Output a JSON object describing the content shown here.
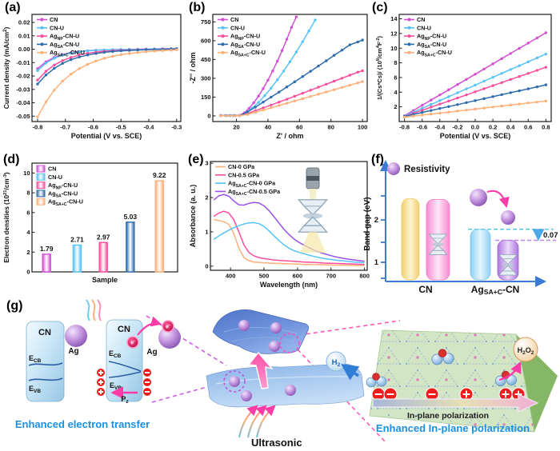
{
  "panel_labels": [
    "(a)",
    "(b)",
    "(c)",
    "(d)",
    "(e)",
    "(f)",
    "(g)"
  ],
  "palette": {
    "cn": "#d44fd4",
    "cn_u": "#56c2f8",
    "ag_np": "#fb4d9d",
    "ag_sa": "#2d6dad",
    "ag_sa_c": "#ffb078",
    "purple_05": "#9950e8",
    "caption_blue": "#1b8fe0",
    "axis_blue": "#3a7bd5",
    "charge_red": "#ee1c1c",
    "pink_arrow": "#ff3ba8"
  },
  "chart_data": [
    {
      "id": "a",
      "type": "line",
      "xlabel": "Potential (V vs. SCE)",
      "ylabel": "Current density (mA/cm^{2})",
      "xlim": [
        -0.82,
        -0.285
      ],
      "ylim": [
        -0.054,
        0.026
      ],
      "xticks": [
        -0.8,
        -0.7,
        -0.6,
        -0.5,
        -0.4,
        -0.3
      ],
      "xtick_labels": [
        "-0.8",
        "-0.7",
        "-0.6",
        "-0.5",
        "-0.4",
        "-0.3"
      ],
      "yticks": [
        0.02,
        0.01,
        0,
        -0.01,
        -0.02,
        -0.03,
        -0.04,
        -0.05
      ],
      "ytick_labels": [
        "0.02",
        "0.01",
        "0.00",
        "-0.01",
        "-0.02",
        "-0.03",
        "-0.04",
        "-0.05"
      ],
      "legend_pos": "top-left",
      "grid": false,
      "x": [
        -0.8,
        -0.77,
        -0.74,
        -0.71,
        -0.68,
        -0.65,
        -0.62,
        -0.59,
        -0.56,
        -0.53,
        -0.5,
        -0.47,
        -0.44,
        -0.41,
        -0.38,
        -0.35,
        -0.32,
        -0.3
      ],
      "series": [
        {
          "name": "CN",
          "color": "#d44fd4",
          "values": [
            -0.0145,
            -0.0094,
            -0.0061,
            -0.004,
            -0.0026,
            -0.0017,
            -0.0011,
            -0.0007,
            -0.0005,
            -0.0003,
            -0.0002,
            -0.0001,
            0.0,
            0.0001,
            0.0002,
            0.0003,
            0.0004,
            0.0005
          ]
        },
        {
          "name": "CN-U",
          "color": "#56c2f8",
          "values": [
            -0.016,
            -0.0104,
            -0.0068,
            -0.0044,
            -0.0029,
            -0.0019,
            -0.0012,
            -0.0008,
            -0.0005,
            -0.0003,
            -0.0002,
            -0.0001,
            0.0,
            0.0001,
            0.0002,
            0.0003,
            0.0004,
            0.0005
          ]
        },
        {
          "name": "Ag_{NP}-CN-U",
          "color": "#fb4d9d",
          "values": [
            -0.023,
            -0.0165,
            -0.0118,
            -0.0085,
            -0.0061,
            -0.0043,
            -0.0031,
            -0.0022,
            -0.0016,
            -0.0011,
            -0.0008,
            -0.0006,
            -0.0004,
            -0.0002,
            -0.0001,
            0.0001,
            0.0002,
            0.0003
          ]
        },
        {
          "name": "Ag_{SA}-CN-U",
          "color": "#2d6dad",
          "values": [
            -0.026,
            -0.0193,
            -0.0143,
            -0.0106,
            -0.0078,
            -0.0058,
            -0.0043,
            -0.0032,
            -0.0023,
            -0.0017,
            -0.0012,
            -0.0009,
            -0.0006,
            -0.0004,
            -0.0002,
            -0.0001,
            0.0001,
            0.0002
          ]
        },
        {
          "name": "Ag_{SA+C}-CN-U",
          "color": "#ffb078",
          "values": [
            -0.0505,
            -0.0393,
            -0.0306,
            -0.0238,
            -0.0186,
            -0.0145,
            -0.0113,
            -0.0088,
            -0.0068,
            -0.0053,
            -0.0041,
            -0.0032,
            -0.0025,
            -0.0019,
            -0.0014,
            -0.001,
            -0.0007,
            -0.0004
          ]
        }
      ]
    },
    {
      "id": "b",
      "type": "line",
      "xlabel": "Z' / ohm",
      "ylabel": "-Z'' / ohm",
      "xlim": [
        5,
        103
      ],
      "ylim": [
        -45,
        810
      ],
      "xticks": [
        20,
        40,
        60,
        80,
        100
      ],
      "xtick_labels": [
        "20",
        "40",
        "60",
        "80",
        "100"
      ],
      "yticks": [
        0,
        150,
        300,
        450,
        600,
        750
      ],
      "ytick_labels": [
        "0",
        "150",
        "300",
        "450",
        "600",
        "750"
      ],
      "legend_pos": "top-left",
      "grid": false,
      "series": [
        {
          "name": "CN",
          "color": "#d44fd4",
          "points": [
            [
              10,
              3
            ],
            [
              13,
              3
            ],
            [
              16,
              3
            ],
            [
              19,
              3
            ],
            [
              22,
              4
            ],
            [
              25,
              25
            ],
            [
              28,
              60
            ],
            [
              31,
              105
            ],
            [
              34,
              158
            ],
            [
              37,
              218
            ],
            [
              40,
              285
            ],
            [
              43,
              358
            ],
            [
              46,
              437
            ],
            [
              49,
              522
            ],
            [
              52,
              612
            ],
            [
              55,
              707
            ],
            [
              58,
              790
            ]
          ]
        },
        {
          "name": "CN-U",
          "color": "#56c2f8",
          "points": [
            [
              10,
              2
            ],
            [
              13,
              2
            ],
            [
              16,
              2
            ],
            [
              19,
              2
            ],
            [
              22,
              3
            ],
            [
              26,
              25
            ],
            [
              30,
              62
            ],
            [
              34,
              108
            ],
            [
              38,
              162
            ],
            [
              42,
              222
            ],
            [
              46,
              288
            ],
            [
              50,
              358
            ],
            [
              54,
              432
            ],
            [
              58,
              510
            ],
            [
              62,
              592
            ],
            [
              66,
              677
            ],
            [
              70,
              765
            ]
          ]
        },
        {
          "name": "Ag_{NP}-CN-U",
          "color": "#fb4d9d",
          "points": [
            [
              10,
              2
            ],
            [
              14,
              2
            ],
            [
              18,
              2
            ],
            [
              22,
              3
            ],
            [
              27,
              20
            ],
            [
              32,
              42
            ],
            [
              37,
              64
            ],
            [
              42,
              87
            ],
            [
              47,
              110
            ],
            [
              52,
              133
            ],
            [
              57,
              157
            ],
            [
              62,
              181
            ],
            [
              67,
              205
            ],
            [
              72,
              229
            ],
            [
              77,
              253
            ],
            [
              82,
              277
            ],
            [
              87,
              301
            ],
            [
              92,
              325
            ],
            [
              97,
              349
            ],
            [
              100,
              360
            ]
          ]
        },
        {
          "name": "Ag_{SA}-CN-U",
          "color": "#2d6dad",
          "points": [
            [
              10,
              2
            ],
            [
              14,
              2
            ],
            [
              18,
              2
            ],
            [
              22,
              3
            ],
            [
              27,
              32
            ],
            [
              32,
              70
            ],
            [
              37,
              110
            ],
            [
              42,
              150
            ],
            [
              47,
              190
            ],
            [
              52,
              231
            ],
            [
              57,
              272
            ],
            [
              62,
              314
            ],
            [
              67,
              356
            ],
            [
              72,
              398
            ],
            [
              77,
              440
            ],
            [
              82,
              483
            ],
            [
              87,
              525
            ],
            [
              92,
              567
            ],
            [
              97,
              590
            ],
            [
              100,
              605
            ]
          ]
        },
        {
          "name": "Ag_{SA+C}-CN-U",
          "color": "#ffb078",
          "points": [
            [
              10,
              1
            ],
            [
              14,
              1
            ],
            [
              18,
              1
            ],
            [
              22,
              2
            ],
            [
              27,
              11
            ],
            [
              32,
              29
            ],
            [
              37,
              47
            ],
            [
              42,
              65
            ],
            [
              47,
              83
            ],
            [
              52,
              101
            ],
            [
              57,
              119
            ],
            [
              62,
              137
            ],
            [
              67,
              155
            ],
            [
              72,
              173
            ],
            [
              77,
              191
            ],
            [
              82,
              209
            ],
            [
              87,
              227
            ],
            [
              92,
              245
            ],
            [
              97,
              263
            ],
            [
              100,
              274
            ]
          ]
        }
      ]
    },
    {
      "id": "c",
      "type": "line",
      "xlabel": "Potential (V vs. SCE)",
      "ylabel": "1/(Cs*Cs)/ (10^{9}/cm^{4}F^{-2})",
      "xlim": [
        -0.86,
        0.86
      ],
      "ylim": [
        0,
        14.6
      ],
      "xticks": [
        -0.8,
        -0.6,
        -0.4,
        -0.2,
        0,
        0.2,
        0.4,
        0.6,
        0.8
      ],
      "xtick_labels": [
        "-0.8",
        "-0.6",
        "-0.4",
        "-0.2",
        "0.0",
        "0.2",
        "0.4",
        "0.6",
        "0.8"
      ],
      "yticks": [
        2,
        4,
        6,
        8,
        10,
        12,
        14
      ],
      "ytick_labels": [
        "2",
        "4",
        "6",
        "8",
        "10",
        "12",
        "14"
      ],
      "legend_pos": "top-left",
      "grid": false,
      "x": [
        -0.8,
        -0.7,
        -0.6,
        -0.5,
        -0.4,
        -0.3,
        -0.2,
        -0.1,
        0,
        0.1,
        0.2,
        0.3,
        0.4,
        0.5,
        0.6,
        0.7,
        0.8
      ],
      "series": [
        {
          "name": "CN",
          "color": "#d44fd4",
          "values": [
            0.8,
            1.51,
            2.21,
            2.92,
            3.63,
            4.33,
            5.04,
            5.74,
            6.45,
            7.16,
            7.86,
            8.57,
            9.27,
            9.98,
            10.69,
            11.39,
            12.1
          ]
        },
        {
          "name": "CN-U",
          "color": "#56c2f8",
          "values": [
            0.75,
            1.28,
            1.81,
            2.33,
            2.86,
            3.39,
            3.92,
            4.45,
            4.97,
            5.5,
            6.03,
            6.56,
            7.09,
            7.61,
            8.14,
            8.67,
            9.2
          ]
        },
        {
          "name": "Ag_{NP}-CN-U",
          "color": "#fb4d9d",
          "values": [
            0.7,
            1.12,
            1.54,
            1.96,
            2.38,
            2.79,
            3.21,
            3.63,
            4.05,
            4.47,
            4.89,
            5.31,
            5.73,
            6.14,
            6.56,
            6.98,
            7.4
          ]
        },
        {
          "name": "Ag_{SA}-CN-U",
          "color": "#2d6dad",
          "values": [
            0.7,
            0.97,
            1.24,
            1.51,
            1.78,
            2.04,
            2.31,
            2.58,
            2.85,
            3.12,
            3.39,
            3.66,
            3.93,
            4.19,
            4.46,
            4.73,
            5.0
          ]
        },
        {
          "name": "Ag_{SA+C}-CN-U",
          "color": "#ffb078",
          "values": [
            0.6,
            0.74,
            0.88,
            1.01,
            1.15,
            1.29,
            1.43,
            1.56,
            1.7,
            1.84,
            1.98,
            2.11,
            2.25,
            2.39,
            2.53,
            2.66,
            2.8
          ]
        }
      ]
    },
    {
      "id": "d",
      "type": "bar",
      "xlabel": "Sample",
      "ylabel": "Electron densities (10^{21}/cm^{-3})",
      "ylim": [
        0,
        11
      ],
      "yticks": [
        0,
        2,
        4,
        6,
        8,
        10
      ],
      "ytick_labels": [
        "0",
        "2",
        "4",
        "6",
        "8",
        "10"
      ],
      "categories": [
        "CN",
        "CN-U",
        "Ag_{NP}-CN-U",
        "Ag_{SA}-CN-U",
        "Ag_{SA+C}-CN-U"
      ],
      "values": [
        1.79,
        2.71,
        2.97,
        5.03,
        9.22
      ],
      "value_labels": [
        "1.79",
        "2.71",
        "2.97",
        "5.03",
        "9.22"
      ],
      "colors": [
        "#d44fd4",
        "#56c2f8",
        "#fb4d9d",
        "#2d6dad",
        "#ffb078"
      ]
    },
    {
      "id": "e",
      "type": "line",
      "xlabel": "Wavelength (nm)",
      "ylabel": "Absorbance (a. u.)",
      "xlim": [
        340,
        808
      ],
      "ylim": [
        -0.12,
        3.05
      ],
      "xticks": [
        400,
        500,
        600,
        700,
        800
      ],
      "xtick_labels": [
        "400",
        "500",
        "600",
        "700",
        "800"
      ],
      "yticks": [
        0,
        1,
        2,
        3
      ],
      "ytick_labels": [
        "0",
        "1",
        "2",
        "3"
      ],
      "legend_pos": "top-left",
      "grid": false,
      "no_markers": true,
      "x": [
        350,
        365,
        380,
        395,
        410,
        425,
        440,
        455,
        470,
        485,
        500,
        515,
        530,
        545,
        560,
        575,
        590,
        605,
        620,
        650,
        680,
        710,
        740,
        770,
        800
      ],
      "series": [
        {
          "name": "CN-0 GPa",
          "color": "#ffb078",
          "values": [
            1.36,
            1.33,
            1.3,
            1.22,
            0.95,
            0.52,
            0.25,
            0.16,
            0.12,
            0.11,
            0.1,
            0.09,
            0.08,
            0.08,
            0.07,
            0.07,
            0.06,
            0.06,
            0.05,
            0.05,
            0.04,
            0.03,
            0.03,
            0.02,
            0.02
          ]
        },
        {
          "name": "CN-0.5 GPa",
          "color": "#fb4d9d",
          "values": [
            1.45,
            1.55,
            1.6,
            1.55,
            1.35,
            1.0,
            0.62,
            0.4,
            0.3,
            0.25,
            0.22,
            0.2,
            0.18,
            0.17,
            0.16,
            0.15,
            0.14,
            0.13,
            0.12,
            0.11,
            0.09,
            0.08,
            0.07,
            0.06,
            0.05
          ]
        },
        {
          "name": "Ag_{SA+C}-CN-0 GPa",
          "color": "#56c2f8",
          "values": [
            0.78,
            0.88,
            0.97,
            1.05,
            1.12,
            1.18,
            1.23,
            1.26,
            1.27,
            1.24,
            1.16,
            1.03,
            0.88,
            0.74,
            0.62,
            0.52,
            0.45,
            0.4,
            0.36,
            0.28,
            0.22,
            0.18,
            0.15,
            0.12,
            0.1
          ]
        },
        {
          "name": "Ag_{SA+C}-CN-0.5 GPa",
          "color": "#9950e8",
          "values": [
            1.93,
            2.05,
            2.09,
            2.04,
            1.9,
            1.79,
            1.78,
            1.83,
            1.86,
            1.84,
            1.76,
            1.62,
            1.44,
            1.25,
            1.07,
            0.92,
            0.79,
            0.69,
            0.61,
            0.46,
            0.36,
            0.28,
            0.22,
            0.18,
            0.14
          ]
        }
      ]
    },
    {
      "id": "f",
      "type": "bar-groups",
      "ylabel": "Band gap (eV)",
      "legend_label": "Resistivity",
      "annotation": "0.07 eV",
      "ytick_labels": [
        "1",
        "2"
      ],
      "group_labels": [
        "CN",
        "Ag_{SA+C}-CN"
      ],
      "bars": [
        {
          "group": 0,
          "style": "yellow",
          "top_eV": 2.45,
          "anvil": false
        },
        {
          "group": 0,
          "style": "pink",
          "top_eV": 2.43,
          "anvil": true
        },
        {
          "group": 1,
          "style": "blue",
          "top_eV": 1.75,
          "anvil": false
        },
        {
          "group": 1,
          "style": "purple",
          "top_eV": 1.5,
          "anvil": true
        }
      ]
    }
  ],
  "diagram_g": {
    "slab_label": "CN",
    "ag_label": "Ag",
    "ecb": "E_{CB}",
    "evb": "E_{VB}",
    "pz": "P_{z}",
    "electron": "e^{-}",
    "caption_left": "Enhanced electron transfer",
    "ultrasonic": "Ultrasonic",
    "inplane_label": "In-plane polarization",
    "caption_right": "Enhanced In-plane polarization",
    "h2": "H_{2}",
    "h2o2": "H_{2}O_{2}"
  }
}
